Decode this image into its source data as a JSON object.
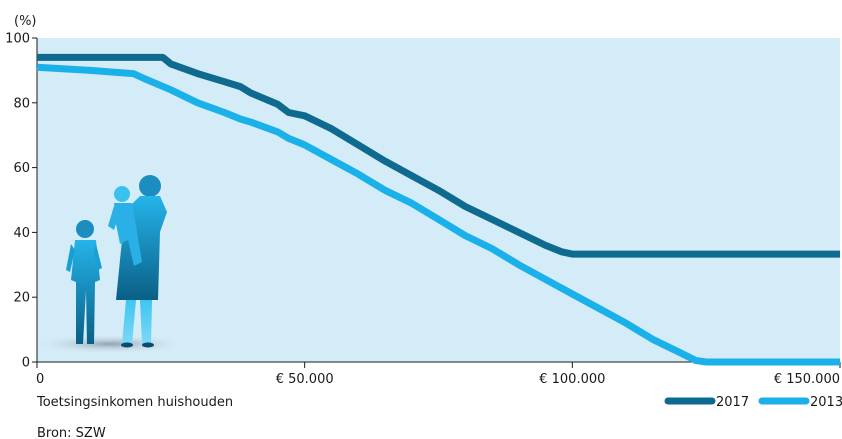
{
  "chart_data": {
    "type": "line",
    "ylabel": "(%)",
    "xlabel": "Toetsingsinkomen huishouden",
    "source": "Bron: SZW",
    "ylim": [
      0,
      100
    ],
    "xlim": [
      0,
      150000
    ],
    "y_ticks": [
      0,
      20,
      40,
      60,
      80,
      100
    ],
    "y_tick_labels": [
      "0",
      "20",
      "40",
      "60",
      "80",
      "100"
    ],
    "x_ticks": [
      0,
      50000,
      100000,
      150000
    ],
    "x_tick_labels": [
      "0",
      "€ 50.000",
      "€ 100.000",
      "€ 150.000"
    ],
    "grid": false,
    "legend_position": "bottom-right",
    "plot_background": "#d4ecf7",
    "series": [
      {
        "name": "2017",
        "color": "#0e6a8f",
        "x": [
          0,
          23500,
          25000,
          30000,
          35000,
          38000,
          40000,
          45000,
          47000,
          50000,
          55000,
          60000,
          65000,
          70000,
          75000,
          80000,
          85000,
          90000,
          95000,
          98000,
          100000,
          125000,
          150000
        ],
        "y": [
          94,
          94,
          92,
          89,
          86.5,
          85,
          83,
          79.5,
          77,
          76,
          72,
          67,
          62,
          57.5,
          53,
          48,
          44,
          40,
          36,
          34,
          33.3,
          33.3,
          33.3
        ]
      },
      {
        "name": "2013",
        "color": "#1ab0ea",
        "x": [
          0,
          10000,
          18000,
          20000,
          25000,
          30000,
          35000,
          38000,
          40000,
          45000,
          47000,
          50000,
          55000,
          60000,
          65000,
          70000,
          75000,
          80000,
          85000,
          90000,
          95000,
          100000,
          105000,
          110000,
          115000,
          120000,
          123000,
          125000,
          150000
        ],
        "y": [
          91,
          90,
          89,
          87.5,
          84,
          80,
          77,
          75,
          74,
          71,
          69,
          67,
          62.5,
          58,
          53,
          49,
          44,
          39,
          35,
          30,
          25.5,
          21,
          16.5,
          12,
          7,
          3,
          0.5,
          0,
          0
        ]
      }
    ]
  }
}
